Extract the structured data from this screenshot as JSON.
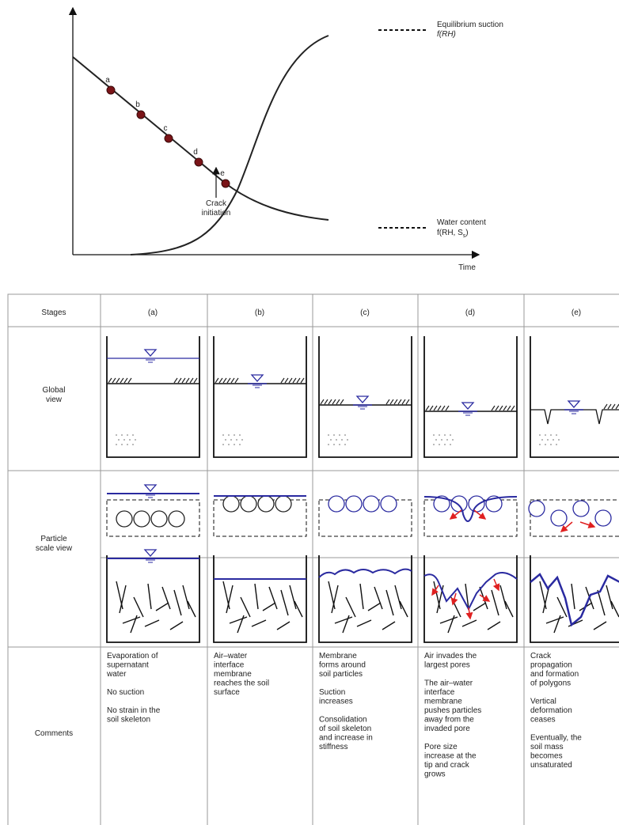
{
  "chart": {
    "point_labels": [
      "a",
      "b",
      "c",
      "d",
      "e"
    ],
    "annotation": [
      "Crack",
      "initiation"
    ],
    "x_axis_label": "Time",
    "legend": {
      "suction": {
        "line1": "Equilibrium suction",
        "line2": "f(RH)"
      },
      "water": {
        "line1": "Water content",
        "line2": "f(RH, S",
        "sub": "s",
        "end": ")"
      }
    }
  },
  "table": {
    "stages_label": "Stages",
    "stages": [
      "(a)",
      "(b)",
      "(c)",
      "(d)",
      "(e)"
    ],
    "row_labels": {
      "global": [
        "Global",
        "view"
      ],
      "particle": [
        "Particle",
        "scale view"
      ],
      "comments": [
        "Comments"
      ]
    },
    "comments": [
      [
        [
          "Evaporation of",
          "supernatant",
          "water"
        ],
        [
          "No suction"
        ],
        [
          "No strain in the",
          "soil skeleton"
        ]
      ],
      [
        [
          "Air–water",
          "interface",
          "membrane",
          "reaches the soil",
          "surface"
        ]
      ],
      [
        [
          "Membrane",
          "forms around",
          "soil particles"
        ],
        [
          "Suction",
          "increases"
        ],
        [
          "Consolidation",
          "of soil skeleton",
          "and increase in",
          "stiffness"
        ]
      ],
      [
        [
          "Air invades the",
          "largest pores"
        ],
        [
          "The air–water",
          "interface",
          "membrane",
          "pushes particles",
          "away from the",
          "invaded pore"
        ],
        [
          "Pore size",
          "increase at the",
          "tip and crack",
          "grows"
        ]
      ],
      [
        [
          "Crack",
          "propagation",
          "and formation",
          "of polygons"
        ],
        [
          "Vertical",
          "deformation",
          "ceases"
        ],
        [
          "Eventually, the",
          "soil mass",
          "becomes",
          "unsaturated"
        ]
      ]
    ]
  }
}
